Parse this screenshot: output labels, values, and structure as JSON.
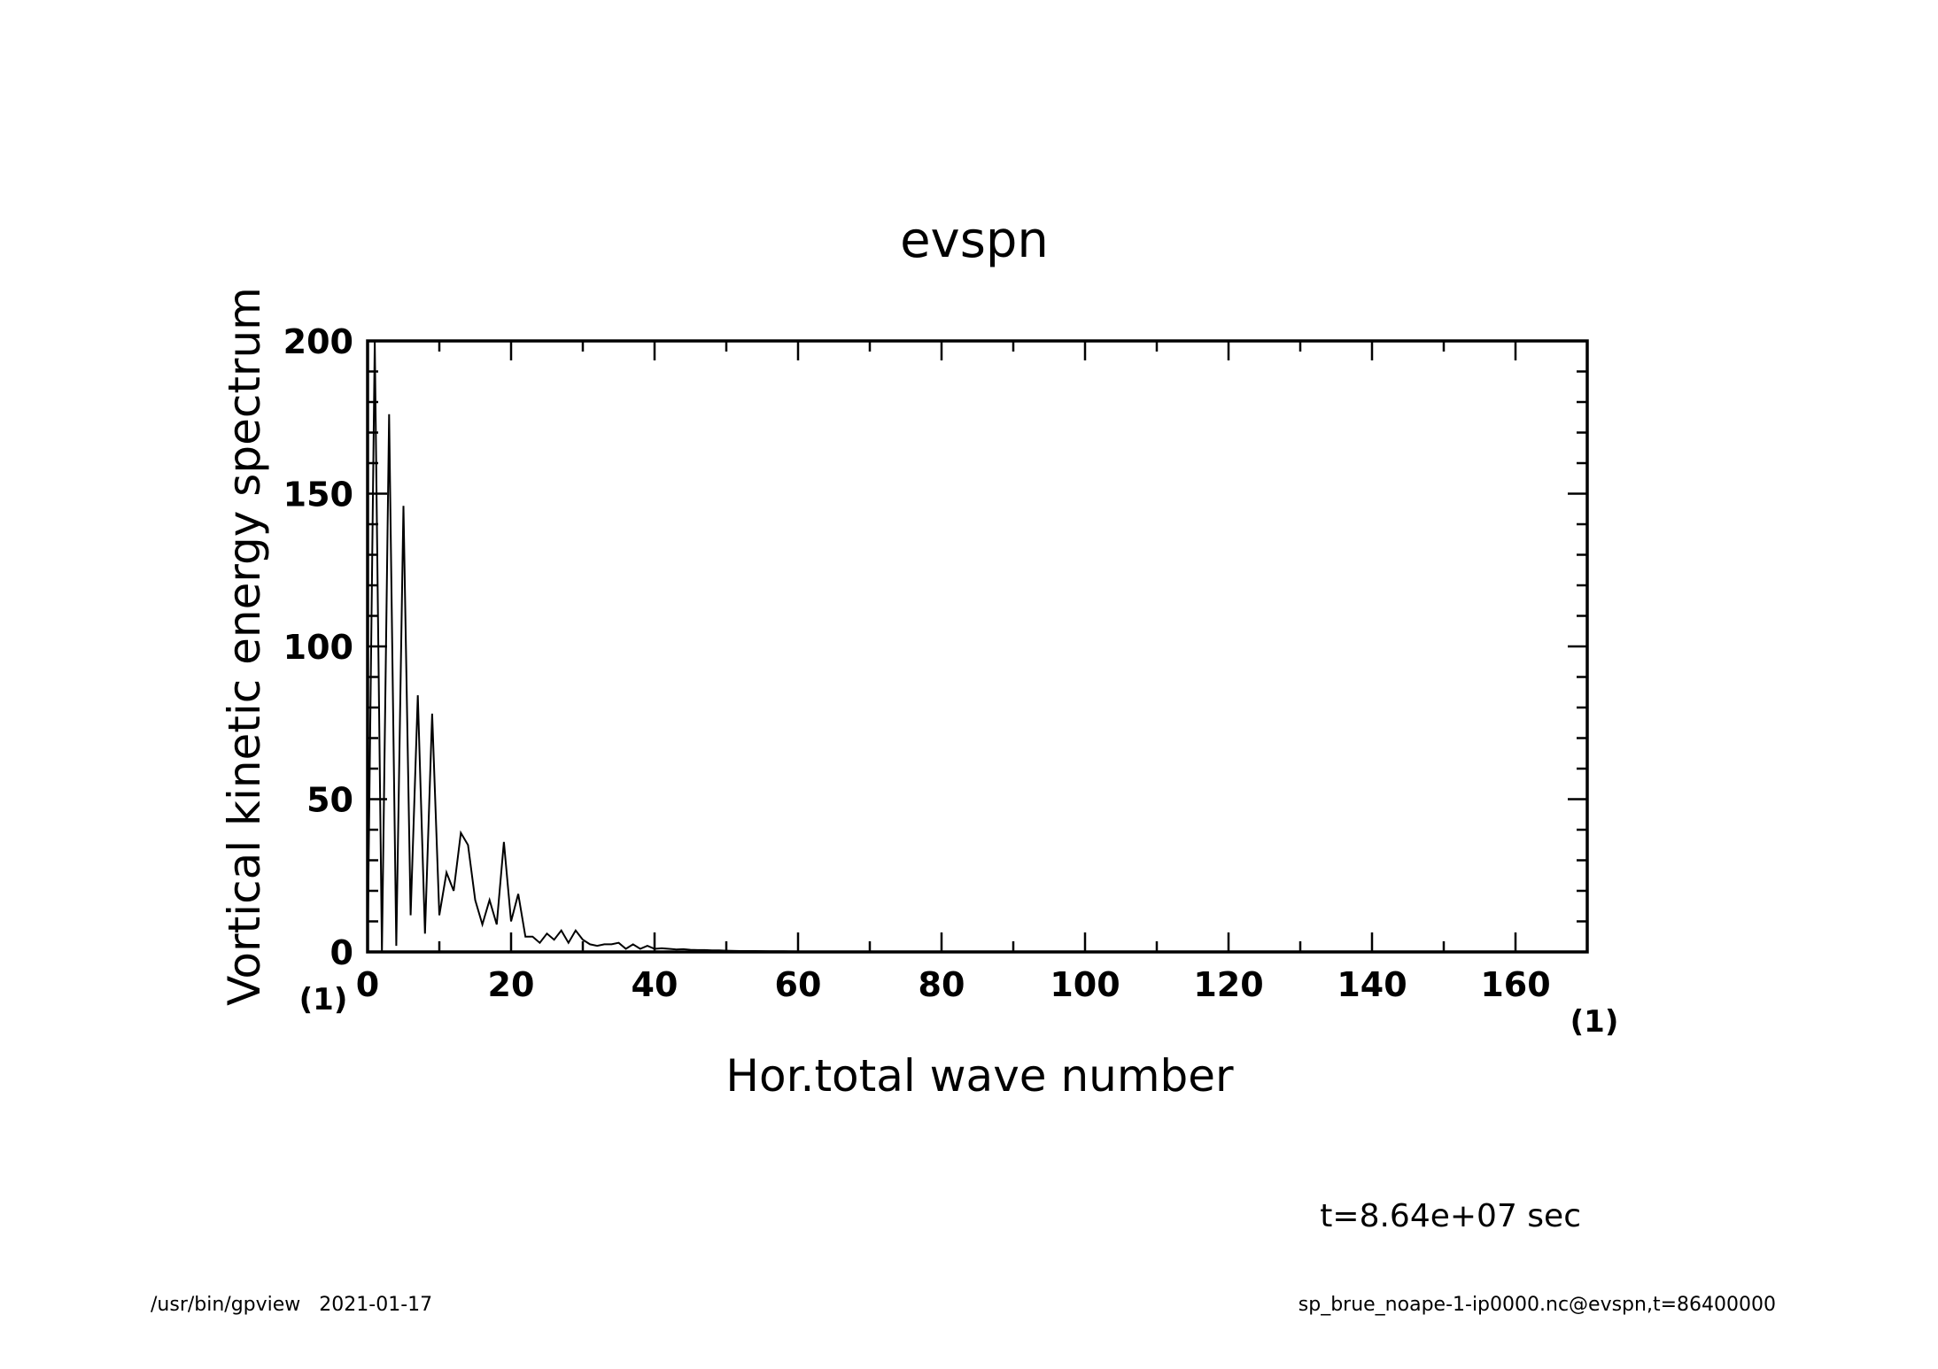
{
  "chart_data": {
    "type": "line",
    "title": "evspn",
    "xlabel": "Hor.total wave number",
    "ylabel": "Vortical kinetic energy spectrum",
    "xlim": [
      0,
      170
    ],
    "ylim": [
      0,
      200
    ],
    "x_ticks": [
      0,
      20,
      40,
      60,
      80,
      100,
      120,
      140,
      160
    ],
    "y_ticks": [
      0,
      50,
      100,
      150,
      200
    ],
    "x_scale_note": "(1)",
    "y_scale_note": "(1)",
    "grid": false,
    "legend": "none",
    "series_color": "#000000",
    "x": [
      0,
      1,
      2,
      3,
      4,
      5,
      6,
      7,
      8,
      9,
      10,
      11,
      12,
      13,
      14,
      15,
      16,
      17,
      18,
      19,
      20,
      21,
      22,
      23,
      24,
      25,
      26,
      27,
      28,
      29,
      30,
      31,
      32,
      33,
      34,
      35,
      36,
      37,
      38,
      39,
      40,
      41,
      42,
      43,
      44,
      45,
      46,
      47,
      48,
      49,
      50,
      52,
      54,
      56,
      58,
      60,
      65,
      70,
      80,
      90,
      100,
      120,
      140,
      160,
      170
    ],
    "y": [
      0,
      200,
      0,
      176,
      2,
      146,
      12,
      84,
      6,
      78,
      12,
      26,
      20,
      39,
      35,
      17,
      9,
      17,
      9,
      36,
      10,
      19,
      5,
      5,
      3,
      6,
      4,
      7,
      3,
      7,
      4,
      2.5,
      2,
      2.5,
      2.5,
      3,
      1,
      2.5,
      1,
      2,
      1,
      1.2,
      1,
      0.8,
      0.9,
      0.7,
      0.6,
      0.6,
      0.5,
      0.5,
      0.4,
      0.3,
      0.3,
      0.2,
      0.2,
      0.15,
      0.1,
      0.05,
      0.02,
      0.01,
      0,
      0,
      0,
      0,
      0
    ]
  },
  "annotations": {
    "time": "t=8.64e+07 sec"
  },
  "footer": {
    "left": "/usr/bin/gpview   2021-01-17",
    "right": "sp_brue_noape-1-ip0000.nc@evspn,t=86400000"
  }
}
